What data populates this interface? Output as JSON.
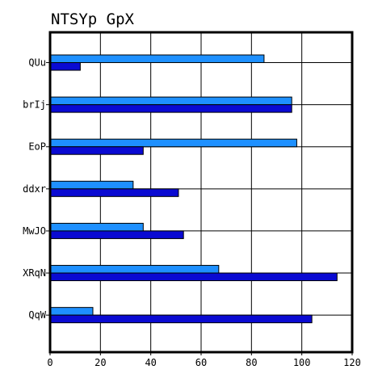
{
  "chart_data": {
    "type": "bar",
    "orientation": "horizontal",
    "title": "NTSYp GpX",
    "xlabel": "",
    "ylabel": "",
    "xlim": [
      0,
      120
    ],
    "x_ticks": [
      0,
      20,
      40,
      60,
      80,
      100,
      120
    ],
    "grid": true,
    "legend": "none",
    "categories": [
      "QUu",
      "brIj",
      "EoP",
      "ddxr",
      "MwJO",
      "XRqN",
      "QqW"
    ],
    "series": [
      {
        "color": "#1e90ff",
        "values": [
          85,
          96,
          98,
          33,
          37,
          67,
          17
        ]
      },
      {
        "color": "#0a0ad2",
        "values": [
          12,
          96,
          37,
          51,
          53,
          114,
          104
        ]
      }
    ]
  }
}
